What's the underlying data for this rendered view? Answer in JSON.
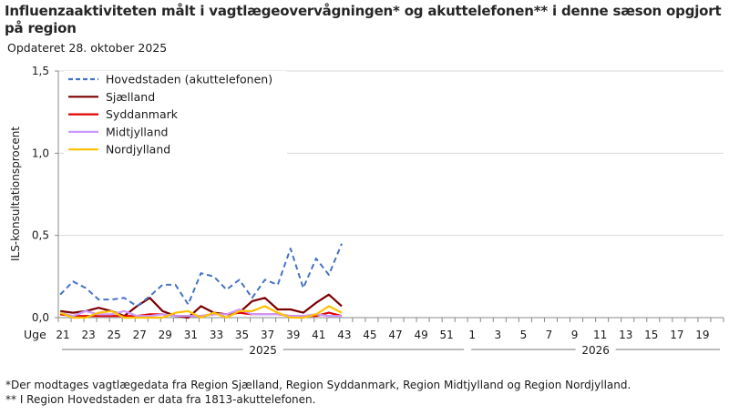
{
  "title": "Influenzaaktiviteten målt i vagtlægeovervågningen* og akuttelefonen** i denne sæson opgjort på region",
  "subtitle": "Opdateret 28. oktober 2025",
  "footnotes": [
    "*Der modtages vagtlægedata fra Region Sjælland, Region Syddanmark, Region Midtjylland og Region Nordjylland.",
    "** I Region Hovedstaden er data fra 1813-akuttelefonen."
  ],
  "chart_data": {
    "type": "line",
    "title": "Influenzaaktiviteten målt i vagtlægeovervågningen* og akuttelefonen** i denne sæson opgjort på region",
    "subtitle": "Opdateret 28. oktober 2025",
    "xlabel": "Uge",
    "ylabel": "ILS-konsultationsprocent",
    "ylim": [
      0,
      1.5
    ],
    "yticks": [
      "0,0",
      "0,5",
      "1,0",
      "1,5"
    ],
    "ytick_values": [
      0,
      0.5,
      1.0,
      1.5
    ],
    "x_label_prefix": "Uge",
    "x_weeks": [
      21,
      22,
      23,
      24,
      25,
      26,
      27,
      28,
      29,
      30,
      31,
      32,
      33,
      34,
      35,
      36,
      37,
      38,
      39,
      40,
      41,
      42,
      43,
      44,
      45,
      46,
      47,
      48,
      49,
      50,
      51,
      52,
      1,
      2,
      3,
      4,
      5,
      6,
      7,
      8,
      9,
      10,
      11,
      12,
      13,
      14,
      15,
      16,
      17,
      18,
      19,
      20
    ],
    "x_tick_labels": [
      "21",
      "23",
      "25",
      "27",
      "29",
      "31",
      "33",
      "35",
      "37",
      "39",
      "41",
      "43",
      "45",
      "47",
      "49",
      "51",
      "1",
      "3",
      "5",
      "7",
      "9",
      "11",
      "13",
      "15",
      "17",
      "19"
    ],
    "year_groups": [
      {
        "label": "2025",
        "from_week": 21,
        "to_week": 52
      },
      {
        "label": "2026",
        "from_week": 1,
        "to_week": 20
      }
    ],
    "grid": "horizontal",
    "legend_position": "top-left inside",
    "data_weeks": [
      21,
      22,
      23,
      24,
      25,
      26,
      27,
      28,
      29,
      30,
      31,
      32,
      33,
      34,
      35,
      36,
      37,
      38,
      39,
      40,
      41,
      42,
      43
    ],
    "series": [
      {
        "name": "Hovedstaden (akuttelefonen)",
        "color": "#4472C4",
        "dash": true,
        "values": [
          0.14,
          0.22,
          0.18,
          0.11,
          0.11,
          0.12,
          0.07,
          0.13,
          0.2,
          0.2,
          0.08,
          0.27,
          0.25,
          0.17,
          0.23,
          0.12,
          0.23,
          0.2,
          0.42,
          0.18,
          0.36,
          0.26,
          0.45
        ]
      },
      {
        "name": "Sjælland",
        "color": "#7B0000",
        "dash": false,
        "values": [
          0.04,
          0.03,
          0.04,
          0.06,
          0.04,
          0.01,
          0.07,
          0.12,
          0.04,
          0.01,
          0.0,
          0.07,
          0.03,
          0.02,
          0.03,
          0.1,
          0.12,
          0.05,
          0.05,
          0.03,
          0.09,
          0.14,
          0.07
        ]
      },
      {
        "name": "Syddanmark",
        "color": "#E00000",
        "dash": false,
        "values": [
          0.02,
          0.01,
          0.01,
          0.01,
          0.01,
          0.01,
          0.01,
          0.02,
          0.02,
          0.01,
          0.01,
          0.01,
          0.02,
          0.02,
          0.03,
          0.02,
          0.02,
          0.02,
          0.01,
          0.01,
          0.01,
          0.03,
          0.01
        ]
      },
      {
        "name": "Midtjylland",
        "color": "#CC99FF",
        "dash": false,
        "values": [
          0.03,
          0.01,
          0.04,
          0.02,
          0.02,
          0.04,
          0.01,
          0.01,
          0.02,
          0.01,
          0.01,
          0.01,
          0.02,
          0.02,
          0.05,
          0.02,
          0.02,
          0.02,
          0.01,
          0.01,
          0.02,
          0.01,
          0.01
        ]
      },
      {
        "name": "Nordjylland",
        "color": "#FFC000",
        "dash": false,
        "values": [
          0.03,
          0.0,
          0.0,
          0.03,
          0.04,
          0.0,
          0.0,
          0.0,
          0.0,
          0.03,
          0.04,
          0.0,
          0.03,
          0.0,
          0.04,
          0.04,
          0.07,
          0.03,
          0.0,
          0.0,
          0.02,
          0.07,
          0.03
        ]
      }
    ]
  }
}
